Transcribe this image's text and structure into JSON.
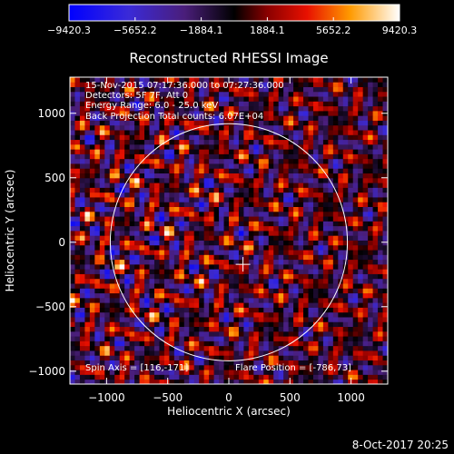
{
  "chart_data": {
    "type": "heatmap",
    "title": "Reconstructed RHESSI Image",
    "xlabel": "Heliocentric X (arcsec)",
    "ylabel": "Heliocentric Y (arcsec)",
    "xlim": [
      -1300,
      1300
    ],
    "ylim": [
      -1100,
      1280
    ],
    "x_ticks": [
      -1000,
      -500,
      0,
      500,
      1000
    ],
    "y_ticks": [
      -1000,
      -500,
      0,
      500,
      1000
    ],
    "solar_disk_radius": 970,
    "crosshair_center": [
      116,
      -171
    ],
    "colorbar": {
      "range": [
        -9420.3,
        9420.3
      ],
      "tick_labels": [
        "−9420.3",
        "−5652.2",
        "−1884.1",
        "1884.1",
        "5652.2",
        "9420.3"
      ]
    },
    "annotations": {
      "time_range": "15-Nov-2015 07:17:36.000 to 07:27:36.000",
      "detectors": "Detectors: 5F 7F, Att 0",
      "energy_range": "Energy Range: 6.0 - 25.0 keV",
      "method": "Back Projection   Total counts: 6.07E+04",
      "spin_axis": "Spin Axis = [116,-171]",
      "flare_position": "Flare Position = [-786,73]"
    }
  },
  "footer": {
    "date_stamp": "8-Oct-2017 20:25"
  },
  "colors": {
    "background": "#000000",
    "foreground": "#ffffff"
  }
}
